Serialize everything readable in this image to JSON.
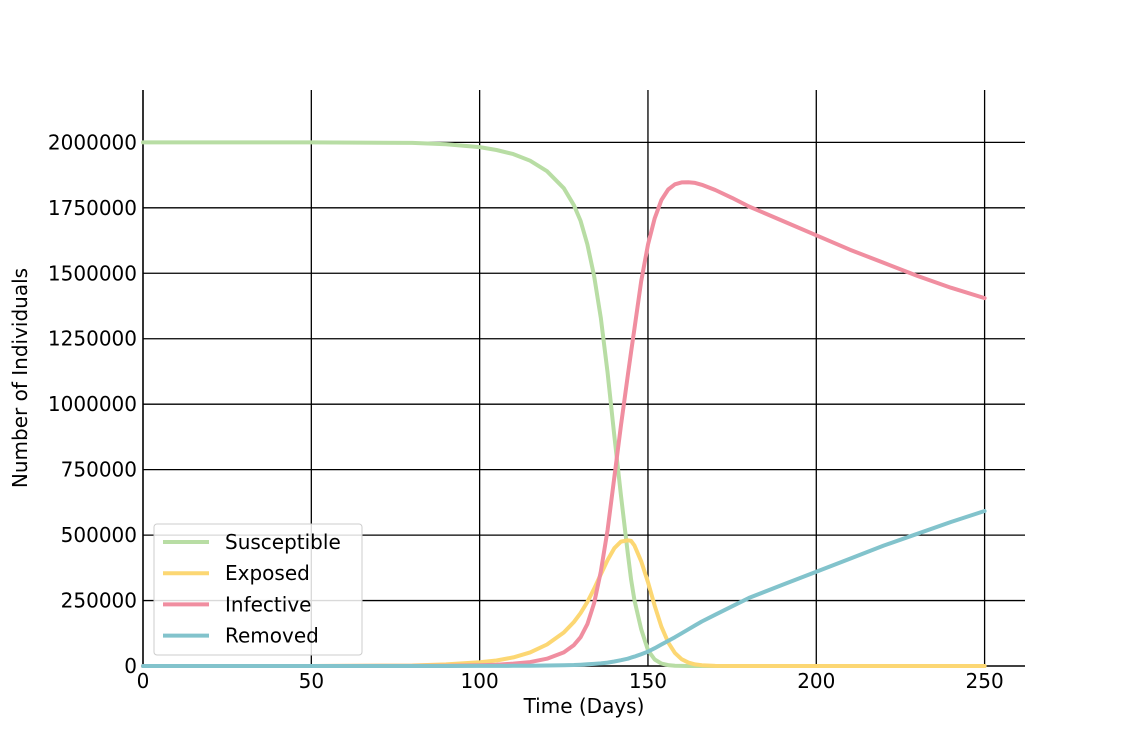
{
  "chart_data": {
    "type": "line",
    "title": "",
    "xlabel": "Time (Days)",
    "ylabel": "Number of Individuals",
    "xlim": [
      0,
      262
    ],
    "ylim": [
      0,
      2200000
    ],
    "grid": true,
    "legend_position": "lower-left",
    "x_ticks": [
      0,
      50,
      100,
      150,
      200,
      250
    ],
    "x_tick_labels": [
      "0",
      "50",
      "100",
      "150",
      "200",
      "250"
    ],
    "y_ticks": [
      0,
      250000,
      500000,
      750000,
      1000000,
      1250000,
      1500000,
      1750000,
      2000000
    ],
    "y_tick_labels": [
      "0",
      "250000",
      "500000",
      "750000",
      "1000000",
      "1250000",
      "1500000",
      "1750000",
      "2000000"
    ],
    "x": [
      0,
      50,
      80,
      90,
      100,
      105,
      110,
      115,
      120,
      125,
      128,
      130,
      132,
      134,
      136,
      138,
      140,
      142,
      144,
      145,
      146,
      148,
      150,
      152,
      154,
      156,
      158,
      160,
      162,
      164,
      166,
      170,
      175,
      180,
      190,
      200,
      210,
      220,
      230,
      240,
      250
    ],
    "series": [
      {
        "name": "Susceptible",
        "color": "#b8ddA4",
        "values": [
          2000000,
          2000000,
          1998000,
          1993000,
          1982000,
          1971000,
          1955000,
          1930000,
          1890000,
          1825000,
          1760000,
          1700000,
          1610000,
          1490000,
          1330000,
          1120000,
          880000,
          650000,
          430000,
          330000,
          250000,
          140000,
          60000,
          25000,
          9000,
          3500,
          1200,
          500,
          0,
          0,
          0,
          0,
          0,
          0,
          0,
          0,
          0,
          0,
          0,
          0,
          0
        ]
      },
      {
        "name": "Exposed",
        "color": "#fcd773",
        "values": [
          0,
          0,
          2000,
          6000,
          14000,
          21000,
          33000,
          52000,
          82000,
          128000,
          168000,
          202000,
          245000,
          295000,
          350000,
          405000,
          450000,
          475000,
          480000,
          478000,
          460000,
          400000,
          320000,
          230000,
          150000,
          90000,
          50000,
          26000,
          13000,
          6000,
          3000,
          500,
          0,
          0,
          0,
          0,
          0,
          0,
          0,
          0,
          0
        ]
      },
      {
        "name": "Infective",
        "color": "#f08ea0",
        "values": [
          0,
          0,
          300,
          1000,
          3000,
          5000,
          9000,
          15000,
          28000,
          52000,
          80000,
          110000,
          160000,
          240000,
          360000,
          520000,
          720000,
          920000,
          1110000,
          1200000,
          1290000,
          1470000,
          1610000,
          1710000,
          1780000,
          1820000,
          1840000,
          1847000,
          1848000,
          1845000,
          1838000,
          1818000,
          1788000,
          1755000,
          1700000,
          1645000,
          1590000,
          1540000,
          1490000,
          1445000,
          1405000
        ]
      },
      {
        "name": "Removed",
        "color": "#82c3cc",
        "values": [
          0,
          0,
          0,
          0,
          200,
          400,
          600,
          1000,
          2000,
          3000,
          4000,
          5000,
          6500,
          8000,
          10000,
          13000,
          17000,
          22000,
          28000,
          32000,
          36000,
          45000,
          55000,
          68000,
          82000,
          96000,
          110000,
          125000,
          140000,
          155000,
          170000,
          196000,
          228000,
          260000,
          310000,
          360000,
          410000,
          460000,
          505000,
          550000,
          592000
        ]
      }
    ]
  }
}
